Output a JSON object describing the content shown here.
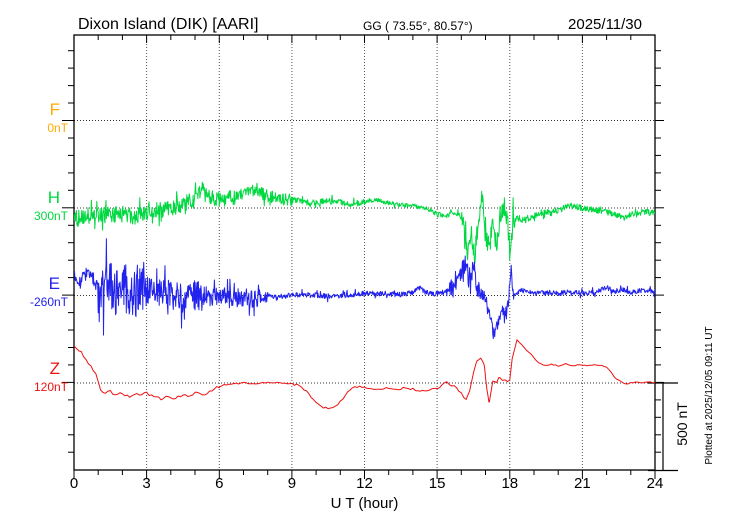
{
  "header": {
    "station_title": "Dixon Island (DIK)  [AARI]",
    "coords": "GG ( 73.55°,  80.57°)",
    "date": "2025/11/30"
  },
  "channels": [
    {
      "letter": "F",
      "baseline_label": "0nT",
      "color": "#FFAA00"
    },
    {
      "letter": "H",
      "baseline_label": "300nT",
      "color": "#00D840"
    },
    {
      "letter": "E",
      "baseline_label": "-260nT",
      "color": "#2222EE"
    },
    {
      "letter": "Z",
      "baseline_label": "120nT",
      "color": "#EE1111"
    }
  ],
  "x_axis": {
    "label": "U T (hour)",
    "ticks": [
      0,
      3,
      6,
      9,
      12,
      15,
      18,
      21,
      24
    ],
    "minor_step_hours": 1,
    "range": [
      0,
      24
    ]
  },
  "scale_bar": {
    "label": "500 nT",
    "nT": 500
  },
  "plot_note": "Plotted at 2025/12/05 09:11 UT",
  "chart_data": {
    "type": "line",
    "title": "Dixon Island (DIK) [AARI] magnetogram, 2025/11/30",
    "xlabel": "U T (hour)",
    "x_range": [
      0,
      24
    ],
    "x_ticks": [
      0,
      3,
      6,
      9,
      12,
      15,
      18,
      21,
      24
    ],
    "y_units": "nT",
    "baseline_separation_nT": 500,
    "minor_tick_nT": 100,
    "scale_bar_nT": 500,
    "grid": "dotted vertical lines every 3 h; dotted horizontal line at each channel baseline",
    "legend_position": "left margin channel letters",
    "series": [
      {
        "name": "F",
        "baseline_value_label": "0nT",
        "spiky": false,
        "noise_step_hours": 0.1,
        "anchors": [],
        "noise": [],
        "note": "no data plotted for F"
      },
      {
        "name": "H",
        "baseline_value_label": "300nT",
        "spiky": true,
        "noise_step_hours": 0.02,
        "anchors": [
          [
            0,
            -69
          ],
          [
            0.5,
            -46
          ],
          [
            1,
            -35
          ],
          [
            1.5,
            -46
          ],
          [
            2,
            -35
          ],
          [
            2.5,
            -46
          ],
          [
            3,
            -23
          ],
          [
            3.5,
            -12
          ],
          [
            4,
            0
          ],
          [
            4.5,
            23
          ],
          [
            5,
            46
          ],
          [
            5.3,
            115
          ],
          [
            5.5,
            58
          ],
          [
            6,
            46
          ],
          [
            6.5,
            69
          ],
          [
            7,
            86
          ],
          [
            7.5,
            104
          ],
          [
            8,
            69
          ],
          [
            8.5,
            58
          ],
          [
            9,
            46
          ],
          [
            9.5,
            35
          ],
          [
            10,
            29
          ],
          [
            10.5,
            46
          ],
          [
            11,
            35
          ],
          [
            11.5,
            23
          ],
          [
            12,
            35
          ],
          [
            12.5,
            46
          ],
          [
            13,
            29
          ],
          [
            13.5,
            17
          ],
          [
            14,
            12
          ],
          [
            14.5,
            0
          ],
          [
            15,
            -35
          ],
          [
            15.3,
            -52
          ],
          [
            15.6,
            -35
          ],
          [
            15.9,
            -23
          ],
          [
            16.1,
            -115
          ],
          [
            16.25,
            -276
          ],
          [
            16.4,
            -115
          ],
          [
            16.55,
            -288
          ],
          [
            16.7,
            -58
          ],
          [
            16.85,
            69
          ],
          [
            17,
            -144
          ],
          [
            17.15,
            -230
          ],
          [
            17.3,
            -86
          ],
          [
            17.45,
            -218
          ],
          [
            17.6,
            -46
          ],
          [
            17.75,
            -29
          ],
          [
            17.9,
            -58
          ],
          [
            18,
            -259
          ],
          [
            18.1,
            -69
          ],
          [
            18.3,
            -58
          ],
          [
            18.5,
            -69
          ],
          [
            19,
            -46
          ],
          [
            19.5,
            -23
          ],
          [
            20,
            -12
          ],
          [
            20.5,
            12
          ],
          [
            21,
            0
          ],
          [
            21.5,
            -12
          ],
          [
            22,
            -23
          ],
          [
            22.5,
            -46
          ],
          [
            22.8,
            -58
          ],
          [
            23,
            -35
          ],
          [
            23.5,
            -23
          ],
          [
            24,
            -29
          ]
        ],
        "noise": [
          [
            0,
            3,
            52
          ],
          [
            3,
            6,
            46
          ],
          [
            6,
            9,
            35
          ],
          [
            9,
            12,
            17
          ],
          [
            12,
            15,
            12
          ],
          [
            15,
            16,
            17
          ],
          [
            16,
            18.2,
            60
          ],
          [
            18.2,
            21,
            17
          ],
          [
            21,
            24,
            17
          ]
        ]
      },
      {
        "name": "E",
        "baseline_value_label": "-260nT",
        "spiky": true,
        "noise_step_hours": 0.02,
        "anchors": [
          [
            0,
            144
          ],
          [
            0.2,
            60
          ],
          [
            0.4,
            115
          ],
          [
            0.6,
            127
          ],
          [
            0.8,
            86
          ],
          [
            1,
            40
          ],
          [
            1.5,
            35
          ],
          [
            2,
            30
          ],
          [
            2.5,
            25
          ],
          [
            3,
            30
          ],
          [
            3.5,
            17
          ],
          [
            4,
            10
          ],
          [
            4.5,
            -17
          ],
          [
            5,
            0
          ],
          [
            5.5,
            -10
          ],
          [
            6,
            0
          ],
          [
            6.5,
            -17
          ],
          [
            7,
            -10
          ],
          [
            7.5,
            -20
          ],
          [
            8,
            0
          ],
          [
            8.5,
            -5
          ],
          [
            9,
            0
          ],
          [
            9.5,
            5
          ],
          [
            10,
            0
          ],
          [
            10.5,
            -5
          ],
          [
            11,
            0
          ],
          [
            11.5,
            5
          ],
          [
            12,
            10
          ],
          [
            12.5,
            12
          ],
          [
            13,
            10
          ],
          [
            13.5,
            5
          ],
          [
            14,
            17
          ],
          [
            14.3,
            46
          ],
          [
            14.6,
            10
          ],
          [
            15,
            12
          ],
          [
            15.5,
            29
          ],
          [
            15.8,
            58
          ],
          [
            16,
            144
          ],
          [
            16.2,
            190
          ],
          [
            16.35,
            58
          ],
          [
            16.5,
            173
          ],
          [
            16.65,
            46
          ],
          [
            16.8,
            29
          ],
          [
            17,
            -29
          ],
          [
            17.2,
            -144
          ],
          [
            17.35,
            -230
          ],
          [
            17.5,
            -173
          ],
          [
            17.65,
            -69
          ],
          [
            17.8,
            -127
          ],
          [
            17.95,
            -29
          ],
          [
            18.05,
            173
          ],
          [
            18.15,
            0
          ],
          [
            18.3,
            17
          ],
          [
            18.5,
            29
          ],
          [
            19,
            12
          ],
          [
            19.5,
            17
          ],
          [
            20,
            12
          ],
          [
            20.5,
            23
          ],
          [
            21,
            12
          ],
          [
            21.5,
            17
          ],
          [
            22,
            46
          ],
          [
            22.3,
            23
          ],
          [
            22.7,
            35
          ],
          [
            23,
            17
          ],
          [
            23.5,
            29
          ],
          [
            24,
            23
          ]
        ],
        "noise": [
          [
            0,
            1,
            35
          ],
          [
            1,
            3,
            150
          ],
          [
            3,
            5.5,
            86
          ],
          [
            5.5,
            8,
            52
          ],
          [
            8,
            12,
            15
          ],
          [
            12,
            15.5,
            15
          ],
          [
            15.5,
            16.8,
            55
          ],
          [
            16.8,
            18.2,
            40
          ],
          [
            18.2,
            24,
            14
          ]
        ]
      },
      {
        "name": "Z",
        "baseline_value_label": "120nT",
        "spiky": false,
        "noise_step_hours": 0.1,
        "anchors": [
          [
            0,
            218
          ],
          [
            0.3,
            173
          ],
          [
            0.5,
            126
          ],
          [
            0.7,
            104
          ],
          [
            0.9,
            46
          ],
          [
            1.1,
            -40
          ],
          [
            1.3,
            -58
          ],
          [
            1.5,
            -46
          ],
          [
            1.7,
            -69
          ],
          [
            2,
            -58
          ],
          [
            2.3,
            -80
          ],
          [
            2.6,
            -69
          ],
          [
            3,
            -58
          ],
          [
            3.3,
            -75
          ],
          [
            3.6,
            -92
          ],
          [
            3.9,
            -80
          ],
          [
            4.2,
            -86
          ],
          [
            4.5,
            -69
          ],
          [
            4.8,
            -80
          ],
          [
            5,
            -58
          ],
          [
            5.3,
            -69
          ],
          [
            5.6,
            -46
          ],
          [
            5.9,
            -23
          ],
          [
            6.2,
            -12
          ],
          [
            6.5,
            -6
          ],
          [
            7,
            0
          ],
          [
            7.5,
            -6
          ],
          [
            8,
            6
          ],
          [
            8.5,
            0
          ],
          [
            9,
            -6
          ],
          [
            9.3,
            -12
          ],
          [
            9.6,
            -46
          ],
          [
            10,
            -115
          ],
          [
            10.3,
            -138
          ],
          [
            10.6,
            -144
          ],
          [
            10.9,
            -126
          ],
          [
            11.2,
            -69
          ],
          [
            11.5,
            -23
          ],
          [
            11.8,
            -23
          ],
          [
            12,
            -29
          ],
          [
            12.5,
            -35
          ],
          [
            13,
            -29
          ],
          [
            13.3,
            -40
          ],
          [
            13.6,
            -29
          ],
          [
            14,
            -35
          ],
          [
            14.3,
            -46
          ],
          [
            14.6,
            -40
          ],
          [
            15,
            -29
          ],
          [
            15.2,
            -12
          ],
          [
            15.4,
            0
          ],
          [
            15.6,
            -12
          ],
          [
            15.8,
            -23
          ],
          [
            16,
            -58
          ],
          [
            16.2,
            -98
          ],
          [
            16.35,
            -46
          ],
          [
            16.5,
            58
          ],
          [
            16.65,
            126
          ],
          [
            16.8,
            150
          ],
          [
            16.95,
            104
          ],
          [
            17.05,
            -29
          ],
          [
            17.15,
            -121
          ],
          [
            17.3,
            12
          ],
          [
            17.45,
            0
          ],
          [
            17.55,
            29
          ],
          [
            17.7,
            12
          ],
          [
            17.85,
            17
          ],
          [
            18,
            12
          ],
          [
            18.1,
            144
          ],
          [
            18.3,
            247
          ],
          [
            18.5,
            218
          ],
          [
            18.7,
            184
          ],
          [
            18.9,
            161
          ],
          [
            19.1,
            126
          ],
          [
            19.3,
            109
          ],
          [
            19.5,
            98
          ],
          [
            19.7,
            109
          ],
          [
            20,
            98
          ],
          [
            20.3,
            109
          ],
          [
            20.6,
            98
          ],
          [
            20.9,
            104
          ],
          [
            21.2,
            98
          ],
          [
            21.5,
            104
          ],
          [
            21.8,
            98
          ],
          [
            22,
            92
          ],
          [
            22.2,
            58
          ],
          [
            22.4,
            23
          ],
          [
            22.6,
            6
          ],
          [
            22.8,
            -6
          ],
          [
            23,
            0
          ],
          [
            23.2,
            6
          ],
          [
            23.5,
            0
          ],
          [
            23.8,
            6
          ],
          [
            24,
            0
          ]
        ],
        "noise": [
          [
            0,
            6,
            9
          ],
          [
            6,
            9,
            4
          ],
          [
            9,
            12,
            6
          ],
          [
            12,
            15,
            5
          ],
          [
            15,
            18,
            8
          ],
          [
            18,
            19,
            5
          ],
          [
            19,
            24,
            3
          ]
        ]
      }
    ]
  }
}
